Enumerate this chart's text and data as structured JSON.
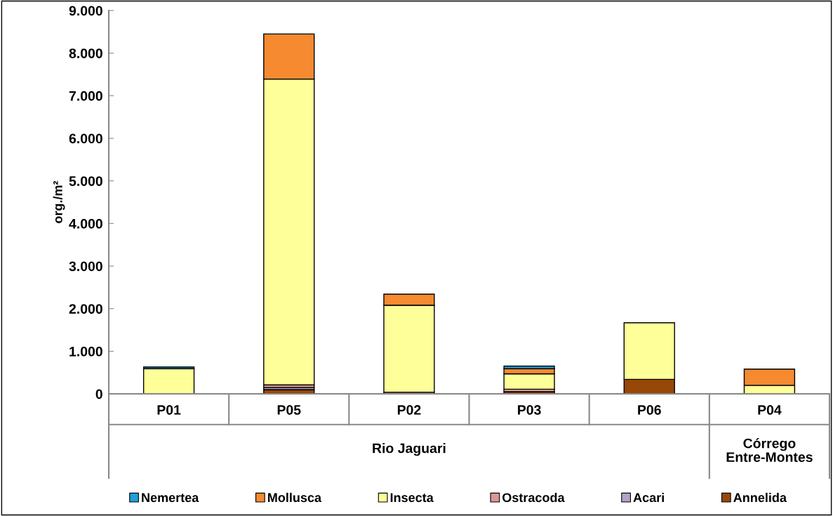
{
  "chart_data": {
    "type": "bar",
    "stacked": true,
    "ylabel": "org./m²",
    "categories": [
      "P01",
      "P05",
      "P02",
      "P03",
      "P06",
      "P04"
    ],
    "series": [
      {
        "name": "Annelida",
        "color": "#974706",
        "values": [
          0,
          100,
          null,
          50,
          340,
          0
        ]
      },
      {
        "name": "Acari",
        "color": "#b3a2c7",
        "values": [
          0,
          50,
          0,
          0,
          0,
          0
        ]
      },
      {
        "name": "Ostracoda",
        "color": "#d99795",
        "values": [
          0,
          60,
          40,
          60,
          0,
          0
        ]
      },
      {
        "name": "Insecta",
        "color": "#ffff99",
        "values": [
          590,
          7180,
          2040,
          360,
          1330,
          200
        ]
      },
      {
        "name": "Mollusca",
        "color": "#f58a30",
        "values": [
          0,
          1060,
          260,
          120,
          0,
          380
        ]
      },
      {
        "name": "Nemertea",
        "color": "#1ea0dc",
        "values": [
          40,
          0,
          0,
          60,
          0,
          0
        ]
      }
    ],
    "ylim": [
      0,
      9000
    ],
    "yticks": [
      0,
      {
        "value": 1000,
        "label": "1.000"
      },
      {
        "value": 2000,
        "label": "2.000"
      },
      {
        "value": 3000,
        "label": "3.000"
      },
      {
        "value": 4000,
        "label": "4.000"
      },
      {
        "value": 5000,
        "label": "5.000"
      },
      {
        "value": 6000,
        "label": "6.000"
      },
      {
        "value": 7000,
        "label": "7.000"
      },
      {
        "value": 8000,
        "label": "8.000"
      },
      {
        "value": 9000,
        "label": "9.000"
      }
    ],
    "annotations": [
      "Rio Jaguari",
      "Córrego\nEntre-Montes"
    ],
    "grid": false,
    "legend": "bottom"
  }
}
